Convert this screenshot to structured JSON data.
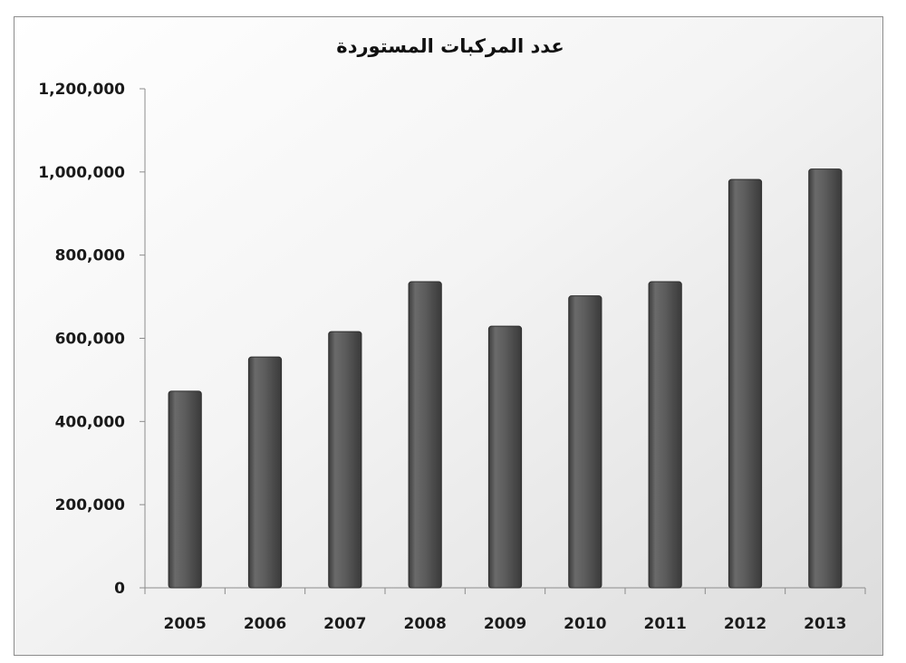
{
  "chart_data": {
    "type": "bar",
    "title": "عدد المركبات المستوردة",
    "xlabel": "",
    "ylabel": "",
    "categories": [
      "2005",
      "2006",
      "2007",
      "2008",
      "2009",
      "2010",
      "2011",
      "2012",
      "2013"
    ],
    "values": [
      473000,
      555000,
      616000,
      736000,
      629000,
      702000,
      736000,
      982000,
      1007000
    ],
    "ylim": [
      0,
      1200000
    ],
    "y_ticks": [
      0,
      200000,
      400000,
      600000,
      800000,
      1000000,
      1200000
    ],
    "y_tick_labels": [
      "0",
      "200,000",
      "400,000",
      "600,000",
      "800,000",
      "1,000,000",
      "1,200,000"
    ],
    "grid": false,
    "legend": "none",
    "colors": {
      "bar_fill": "#5a5a5a",
      "bar_edge": "#2e2e2e",
      "axis": "#8c8c8c",
      "text": "#1a1a1a"
    }
  }
}
